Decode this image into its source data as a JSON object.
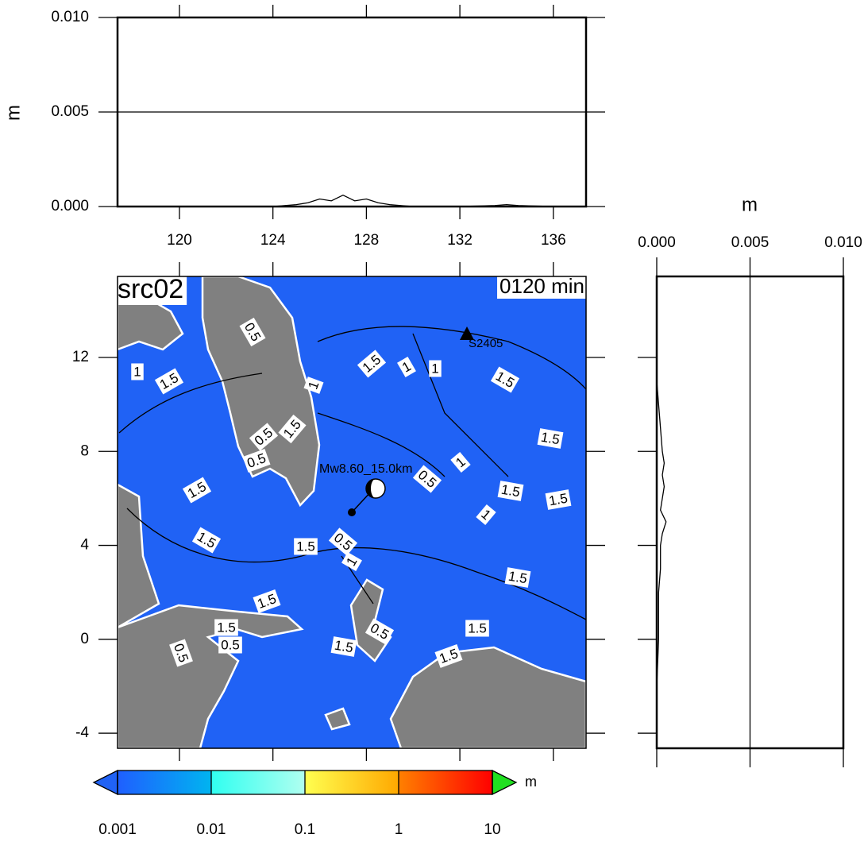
{
  "chart_data": [
    {
      "type": "line",
      "ylabel": "m",
      "x": [
        117.4,
        120,
        122,
        124,
        125,
        125.5,
        126,
        126.5,
        127,
        127.5,
        128,
        128.5,
        129,
        130,
        132,
        133.5,
        134,
        134.5,
        136,
        137.3
      ],
      "values": [
        0,
        0,
        0,
        0,
        0.0001,
        0.0002,
        0.0004,
        0.0003,
        0.0006,
        0.0003,
        0.0004,
        0.0002,
        0.0001,
        0,
        0,
        5e-05,
        0.0001,
        5e-05,
        0,
        0
      ],
      "color": "#000000",
      "xlim": [
        117.35,
        137.4
      ],
      "xticks": [
        120,
        124,
        128,
        132,
        136
      ],
      "ylim": [
        0,
        0.01
      ],
      "yticks": [
        {
          "value": 0,
          "label": "0.000"
        },
        {
          "value": 0.005,
          "label": "0.005"
        },
        {
          "value": 0.01,
          "label": "0.010"
        }
      ],
      "grid": true
    },
    {
      "type": "map",
      "title": "src02",
      "subtitle": "0120 min",
      "annotations": [
        "Mw8.60_15.0km",
        "S2405"
      ],
      "xlim": [
        117.35,
        137.4
      ],
      "xticks": [
        120,
        124,
        128,
        132,
        136
      ],
      "ylim": [
        -4.64,
        15.45
      ],
      "yticks": [
        -4,
        0,
        4,
        8,
        12
      ],
      "contour_labels": [
        1,
        1.5,
        0.5,
        1,
        1.5,
        1,
        1,
        1.5,
        1.5,
        0.5,
        1.5,
        0.5,
        1.5,
        1,
        0.5,
        1.5,
        1.5,
        1,
        1.5,
        1.5,
        0.5,
        1,
        1.5,
        1.5,
        1.5,
        1.5,
        0.5,
        0.5,
        1.5,
        0.5,
        1.5
      ],
      "colors": {
        "sea": "#2062f5",
        "land": "#808080"
      }
    },
    {
      "type": "profile",
      "xlabel": "m",
      "y": [
        -4.6,
        -2,
        0,
        1,
        2,
        3,
        4,
        4.5,
        5,
        5.5,
        6,
        6.5,
        7,
        7.5,
        8,
        9,
        10,
        11,
        13,
        15.4
      ],
      "values": [
        0,
        0,
        0.0001,
        0.0001,
        0.0001,
        0.0002,
        0.0002,
        0.0003,
        0.0005,
        0.0002,
        0.0003,
        0.0004,
        0.0003,
        0.0004,
        0.0003,
        0.0002,
        0.0001,
        0,
        0,
        0
      ],
      "color": "#000000",
      "xlim": [
        0,
        0.01
      ],
      "xticks": [
        {
          "value": 0,
          "label": "0.000"
        },
        {
          "value": 0.005,
          "label": "0.005"
        },
        {
          "value": 0.01,
          "label": "0.010"
        }
      ],
      "ylim": [
        -4.64,
        15.45
      ],
      "grid": true
    },
    {
      "type": "colorbar",
      "unit": "m",
      "log_scale": true,
      "xlim": [
        0.001,
        10
      ],
      "xticks": [
        0.001,
        0.01,
        0.1,
        1,
        10
      ],
      "colors": [
        [
          "#1f5fff",
          "#00b4f0"
        ],
        [
          "#30fff0",
          "#b0fff0"
        ],
        [
          "#ffff50",
          "#ffa800"
        ],
        [
          "#ff8000",
          "#ff0000"
        ]
      ],
      "under_color": "#2062f5",
      "over_color": "#20e020"
    }
  ]
}
